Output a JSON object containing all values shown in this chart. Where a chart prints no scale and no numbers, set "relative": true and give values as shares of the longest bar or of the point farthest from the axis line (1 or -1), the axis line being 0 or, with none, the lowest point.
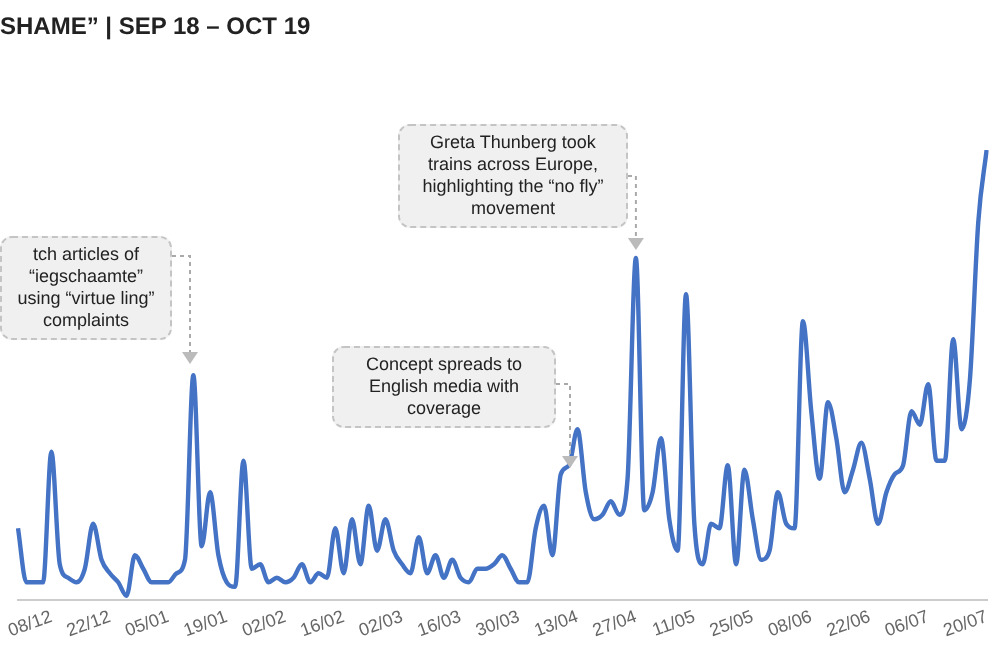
{
  "chart_data": {
    "type": "line",
    "title": "SHAME” | SEP 18 – OCT 19",
    "relative": true,
    "categories": [
      null,
      null,
      null,
      null,
      "08/12",
      null,
      null,
      null,
      null,
      null,
      null,
      "22/12",
      null,
      null,
      null,
      null,
      null,
      null,
      "05/01",
      null,
      null,
      null,
      null,
      null,
      null,
      "19/01",
      null,
      null,
      null,
      null,
      null,
      null,
      "02/02",
      null,
      null,
      null,
      null,
      null,
      null,
      "16/02",
      null,
      null,
      null,
      null,
      null,
      null,
      "02/03",
      null,
      null,
      null,
      null,
      null,
      null,
      "16/03",
      null,
      null,
      null,
      null,
      null,
      null,
      "30/03",
      null,
      null,
      null,
      null,
      null,
      null,
      "13/04",
      null,
      null,
      null,
      null,
      null,
      null,
      "27/04",
      null,
      null,
      null,
      null,
      null,
      null,
      "11/05",
      null,
      null,
      null,
      null,
      null,
      null,
      "25/05",
      null,
      null,
      null,
      null,
      null,
      null,
      "08/06",
      null,
      null,
      null,
      null,
      null,
      null,
      "22/06",
      null,
      null,
      null,
      null,
      null,
      null,
      "06/07",
      null,
      null,
      null,
      null,
      null,
      null,
      "20/07"
    ],
    "series": [
      {
        "color": "#4472c4",
        "values": [
          0.16,
          0.04,
          0.04,
          0.04,
          0.33,
          0.08,
          0.05,
          0.04,
          0.07,
          0.17,
          0.09,
          0.06,
          0.04,
          0.01,
          0.1,
          0.07,
          0.04,
          0.04,
          0.04,
          0.06,
          0.09,
          0.5,
          0.12,
          0.24,
          0.1,
          0.04,
          0.03,
          0.31,
          0.07,
          0.08,
          0.04,
          0.05,
          0.04,
          0.05,
          0.08,
          0.04,
          0.06,
          0.05,
          0.16,
          0.06,
          0.18,
          0.08,
          0.21,
          0.11,
          0.18,
          0.11,
          0.08,
          0.06,
          0.14,
          0.06,
          0.1,
          0.05,
          0.09,
          0.05,
          0.04,
          0.07,
          0.07,
          0.08,
          0.1,
          0.07,
          0.04,
          0.04,
          0.16,
          0.21,
          0.1,
          0.28,
          0.3,
          0.38,
          0.24,
          0.18,
          0.19,
          0.22,
          0.19,
          0.27,
          0.76,
          0.2,
          0.24,
          0.36,
          0.18,
          0.11,
          0.68,
          0.17,
          0.08,
          0.17,
          0.16,
          0.3,
          0.08,
          0.29,
          0.18,
          0.09,
          0.11,
          0.24,
          0.17,
          0.16,
          0.62,
          0.42,
          0.27,
          0.44,
          0.36,
          0.24,
          0.29,
          0.35,
          0.27,
          0.17,
          0.24,
          0.28,
          0.3,
          0.42,
          0.39,
          0.48,
          0.31,
          0.31,
          0.58,
          0.38,
          0.49,
          0.84,
          1
        ]
      }
    ],
    "annotations": [
      "tch articles of “iegschaamte” using “virtue ling” complaints",
      "Concept spreads to English media with coverage",
      {
        "text": "Greta Thunberg took trains across Europe, highlighting the “no fly” movement",
        "x": "27/04",
        "y": 0.76
      }
    ],
    "grid": false,
    "legend": false
  }
}
